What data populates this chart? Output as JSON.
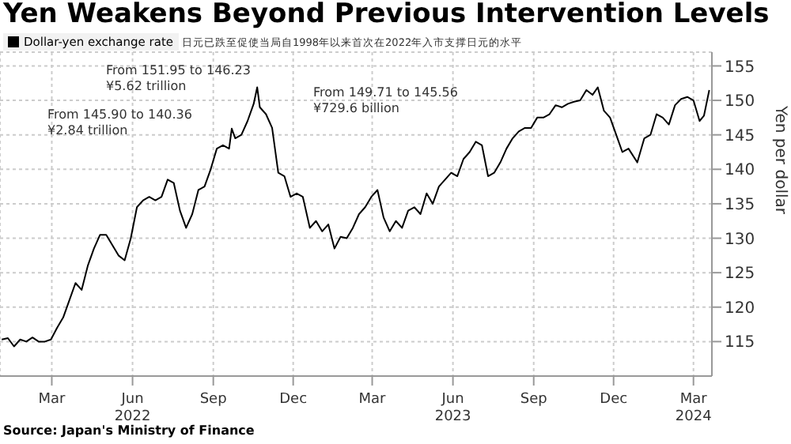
{
  "chart_data": {
    "type": "line",
    "title": "Yen Weakens Beyond Previous Intervention Levels",
    "subtitle": "日元已跌至促使当局自1998年以来首次在2022年入市支撑日元的水平",
    "ylabel": "Yen per dollar",
    "legend": "top left",
    "grid": true,
    "annotations": [
      "From 145.90 to 140.36\n¥2.84 trillion",
      "From 151.95 to 146.23\n¥5.62 trillion",
      "From 149.71 to 145.56\n¥729.6 billion",
      "Source: Japan's Ministry of Finance"
    ],
    "xlim": [
      "2022-01-01",
      "2024-03-22"
    ],
    "xticks": [
      {
        "value": "2022-03-01",
        "label": "Mar"
      },
      {
        "value": "2022-06-01",
        "label": "Jun\n2022"
      },
      {
        "value": "2022-09-01",
        "label": "Sep"
      },
      {
        "value": "2022-12-01",
        "label": "Dec"
      },
      {
        "value": "2023-03-01",
        "label": "Mar"
      },
      {
        "value": "2023-06-01",
        "label": "Jun\n2023"
      },
      {
        "value": "2023-09-01",
        "label": "Sep"
      },
      {
        "value": "2023-12-01",
        "label": "Dec"
      },
      {
        "value": "2024-03-01",
        "label": "Mar\n2024"
      }
    ],
    "ylim": [
      110,
      157
    ],
    "yticks": [
      115,
      120,
      125,
      130,
      135,
      140,
      145,
      150,
      155
    ],
    "x": [
      "2022-01-03",
      "2022-01-10",
      "2022-01-17",
      "2022-01-24",
      "2022-01-31",
      "2022-02-07",
      "2022-02-14",
      "2022-02-21",
      "2022-02-28",
      "2022-03-07",
      "2022-03-14",
      "2022-03-21",
      "2022-03-28",
      "2022-04-04",
      "2022-04-11",
      "2022-04-18",
      "2022-04-25",
      "2022-05-02",
      "2022-05-09",
      "2022-05-16",
      "2022-05-23",
      "2022-05-30",
      "2022-06-06",
      "2022-06-13",
      "2022-06-20",
      "2022-06-27",
      "2022-07-04",
      "2022-07-11",
      "2022-07-18",
      "2022-07-25",
      "2022-08-01",
      "2022-08-08",
      "2022-08-15",
      "2022-08-22",
      "2022-08-29",
      "2022-09-05",
      "2022-09-12",
      "2022-09-19",
      "2022-09-22",
      "2022-09-26",
      "2022-10-03",
      "2022-10-10",
      "2022-10-17",
      "2022-10-21",
      "2022-10-24",
      "2022-10-31",
      "2022-11-07",
      "2022-11-14",
      "2022-11-21",
      "2022-11-28",
      "2022-12-05",
      "2022-12-12",
      "2022-12-20",
      "2022-12-27",
      "2023-01-03",
      "2023-01-10",
      "2023-01-17",
      "2023-01-24",
      "2023-01-31",
      "2023-02-07",
      "2023-02-14",
      "2023-02-21",
      "2023-02-28",
      "2023-03-07",
      "2023-03-14",
      "2023-03-21",
      "2023-03-28",
      "2023-04-04",
      "2023-04-11",
      "2023-04-18",
      "2023-04-25",
      "2023-05-02",
      "2023-05-09",
      "2023-05-16",
      "2023-05-23",
      "2023-05-30",
      "2023-06-06",
      "2023-06-13",
      "2023-06-20",
      "2023-06-27",
      "2023-07-04",
      "2023-07-11",
      "2023-07-18",
      "2023-07-25",
      "2023-08-01",
      "2023-08-08",
      "2023-08-15",
      "2023-08-22",
      "2023-08-29",
      "2023-09-05",
      "2023-09-12",
      "2023-09-19",
      "2023-09-26",
      "2023-10-03",
      "2023-10-10",
      "2023-10-17",
      "2023-10-24",
      "2023-10-31",
      "2023-11-07",
      "2023-11-13",
      "2023-11-20",
      "2023-11-27",
      "2023-12-04",
      "2023-12-11",
      "2023-12-18",
      "2023-12-28",
      "2024-01-05",
      "2024-01-12",
      "2024-01-19",
      "2024-01-26",
      "2024-02-02",
      "2024-02-09",
      "2024-02-16",
      "2024-02-23",
      "2024-03-01",
      "2024-03-08",
      "2024-03-13",
      "2024-03-19"
    ],
    "series": [
      {
        "name": "Dollar-yen exchange rate",
        "color": "#000000",
        "values": [
          115.3,
          115.5,
          114.3,
          115.3,
          115.0,
          115.6,
          115.0,
          115.0,
          115.3,
          117.0,
          118.5,
          121.0,
          123.5,
          122.5,
          126.0,
          128.5,
          130.5,
          130.5,
          129.0,
          127.5,
          126.8,
          130.0,
          134.5,
          135.5,
          136.0,
          135.5,
          136.0,
          138.5,
          138.0,
          134.0,
          131.5,
          133.5,
          137.0,
          137.5,
          140.0,
          143.0,
          143.5,
          143.0,
          145.9,
          144.5,
          145.0,
          147.0,
          149.5,
          151.9,
          149.0,
          148.0,
          146.0,
          139.5,
          139.0,
          136.0,
          136.5,
          136.0,
          131.5,
          132.5,
          131.0,
          132.0,
          128.5,
          130.2,
          130.0,
          131.5,
          133.5,
          134.5,
          136.0,
          137.0,
          133.0,
          131.0,
          132.5,
          131.5,
          134.0,
          134.5,
          133.5,
          136.5,
          135.0,
          137.5,
          138.5,
          139.5,
          139.0,
          141.5,
          142.5,
          144.0,
          143.5,
          139.0,
          139.5,
          141.0,
          143.0,
          144.5,
          145.5,
          146.0,
          146.0,
          147.5,
          147.5,
          148.0,
          149.3,
          149.0,
          149.5,
          149.8,
          150.0,
          151.5,
          150.8,
          151.9,
          148.5,
          147.5,
          145.0,
          142.5,
          143.0,
          141.0,
          144.5,
          145.0,
          148.0,
          147.5,
          146.5,
          149.3,
          150.2,
          150.5,
          150.0,
          147.0,
          147.8,
          151.5
        ]
      }
    ]
  }
}
